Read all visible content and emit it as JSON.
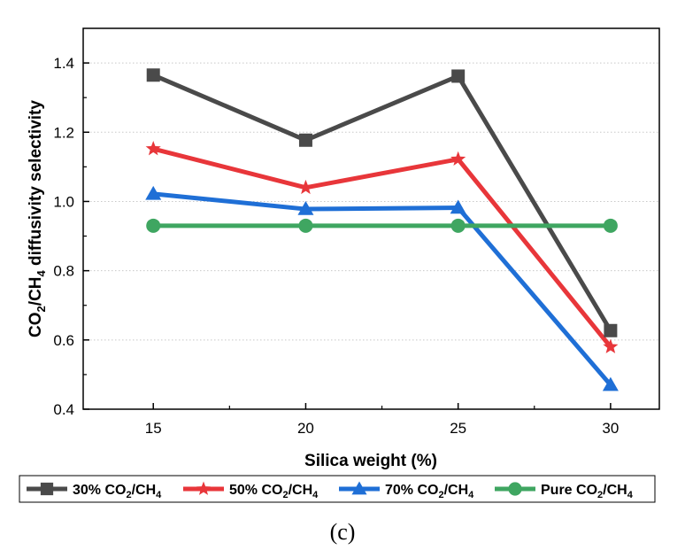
{
  "chart_data": {
    "type": "line",
    "title": "",
    "xlabel": "Silica weight (%)",
    "ylabel": {
      "p1": "CO",
      "s1": "2",
      "p2": "/CH",
      "s2": "4",
      "p3": " diffusivity selectivity"
    },
    "categories": [
      15,
      20,
      25,
      30
    ],
    "xlim": [
      12.7,
      31.6
    ],
    "ylim": [
      0.4,
      1.5
    ],
    "yticks": [
      0.4,
      0.6,
      0.8,
      1.0,
      1.2,
      1.4
    ],
    "ytick_labels": [
      "0.4",
      "0.6",
      "0.8",
      "1.0",
      "1.2",
      "1.4"
    ],
    "xtick_labels": [
      "15",
      "20",
      "25",
      "30"
    ],
    "grid": "horizontal dotted",
    "legend_position": "bottom",
    "series": [
      {
        "name": "30% CO2/CH4",
        "legend": {
          "a": "30% CO",
          "b": "2",
          "c": "/CH",
          "d": "4"
        },
        "values": [
          1.365,
          1.177,
          1.362,
          0.627
        ],
        "color": "#4a4a4a",
        "marker": "square"
      },
      {
        "name": "50% CO2/CH4",
        "legend": {
          "a": "50% CO",
          "b": "2",
          "c": "/CH",
          "d": "4"
        },
        "values": [
          1.152,
          1.04,
          1.122,
          0.58
        ],
        "color": "#e8363a",
        "marker": "star"
      },
      {
        "name": "70% CO2/CH4",
        "legend": {
          "a": "70% CO",
          "b": "2",
          "c": "/CH",
          "d": "4"
        },
        "values": [
          1.022,
          0.978,
          0.982,
          0.47
        ],
        "color": "#1f6fd6",
        "marker": "triangle"
      },
      {
        "name": "Pure CO2/CH4",
        "legend": {
          "a": "Pure CO",
          "b": "2",
          "c": "/CH",
          "d": "4"
        },
        "values": [
          0.93,
          0.93,
          0.93,
          0.93
        ],
        "color": "#3fa661",
        "marker": "circle"
      }
    ]
  },
  "caption": "(c)"
}
